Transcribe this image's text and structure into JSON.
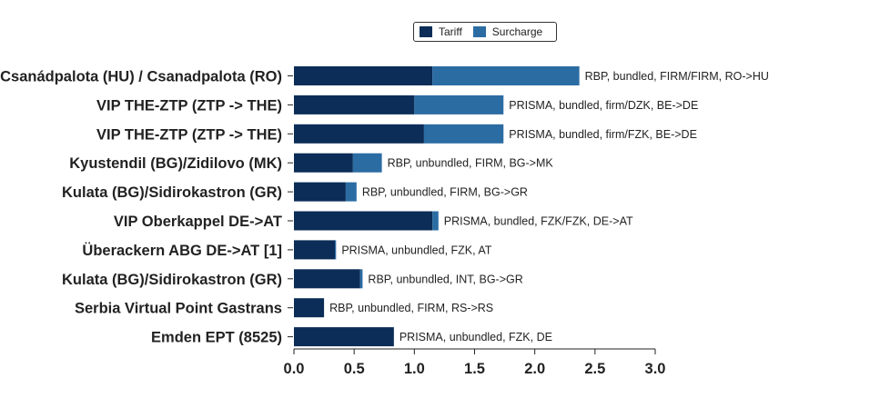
{
  "chart_data": {
    "type": "bar",
    "orientation": "horizontal",
    "stacked": true,
    "title": "",
    "xlabel": "",
    "ylabel": "",
    "xlim": [
      0,
      3.0
    ],
    "xticks": [
      "0.0",
      "0.5",
      "1.0",
      "1.5",
      "2.0",
      "2.5",
      "3.0"
    ],
    "grid": false,
    "legend_position": "top-center",
    "categories": [
      "Csanádpalota (HU) / Csanadpalota (RO)",
      "VIP THE-ZTP (ZTP -> THE)",
      "VIP THE-ZTP (ZTP -> THE)",
      "Kyustendil (BG)/Zidilovo (MK)",
      "Kulata (BG)/Sidirokastron (GR)",
      "VIP Oberkappel DE->AT",
      "Überackern ABG DE->AT [1]",
      "Kulata (BG)/Sidirokastron (GR)",
      "Serbia Virtual Point Gastrans",
      "Emden EPT (8525)"
    ],
    "annotations": [
      "RBP, bundled, FIRM/FIRM, RO->HU",
      "PRISMA, bundled, firm/DZK, BE->DE",
      "PRISMA, bundled, firm/FZK, BE->DE",
      "RBP, unbundled, FIRM, BG->MK",
      "RBP, unbundled, FIRM, BG->GR",
      "PRISMA, bundled, FZK/FZK, DE->AT",
      "PRISMA, unbundled, FZK, AT",
      "RBP, unbundled, INT, BG->GR",
      "RBP, unbundled, FIRM, RS->RS",
      "PRISMA, unbundled, FZK, DE"
    ],
    "series": [
      {
        "name": "Tariff",
        "color": "#0b2d57",
        "values": [
          1.15,
          1.0,
          1.08,
          0.49,
          0.43,
          1.15,
          0.34,
          0.55,
          0.25,
          0.83
        ]
      },
      {
        "name": "Surcharge",
        "color": "#2b6ca3",
        "values": [
          1.22,
          0.74,
          0.66,
          0.24,
          0.09,
          0.05,
          0.01,
          0.02,
          0.0,
          0.0
        ]
      }
    ]
  }
}
